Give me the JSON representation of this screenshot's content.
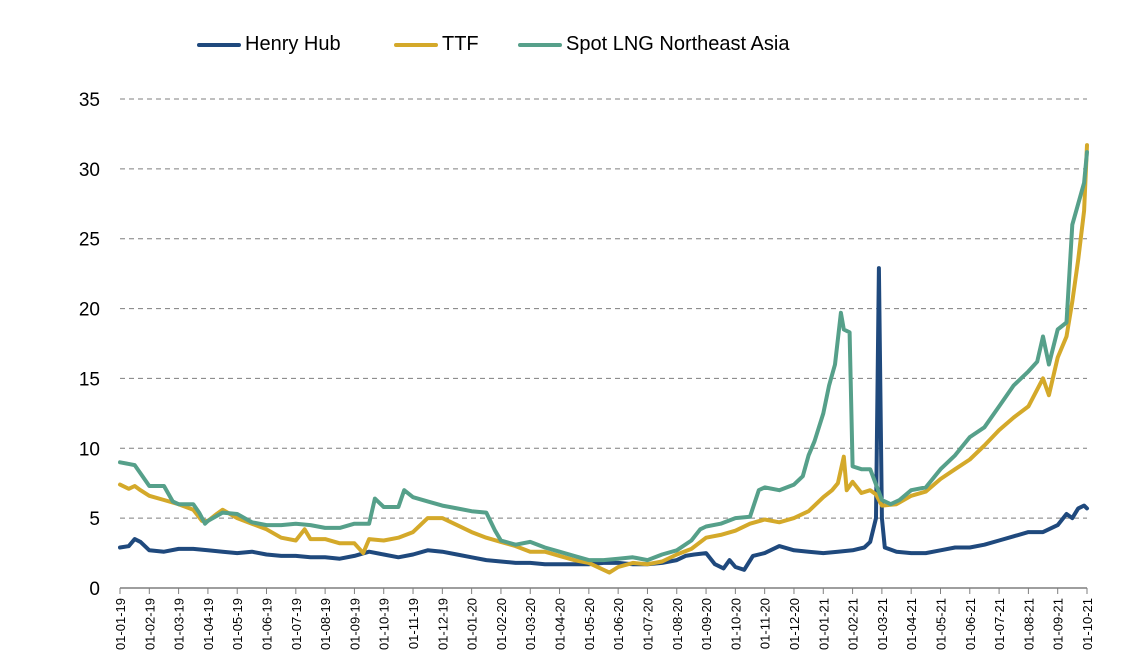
{
  "chart_data": {
    "type": "line",
    "title": "",
    "xlabel": "",
    "ylabel": "",
    "ylim": [
      0,
      35
    ],
    "yticks": [
      0,
      5,
      10,
      15,
      20,
      25,
      30,
      35
    ],
    "grid": "horizontal-dashed",
    "legend": "top",
    "x_tick_labels": [
      "01-01-19",
      "01-02-19",
      "01-03-19",
      "01-04-19",
      "01-05-19",
      "01-06-19",
      "01-07-19",
      "01-08-19",
      "01-09-19",
      "01-10-19",
      "01-11-19",
      "01-12-19",
      "01-01-20",
      "01-02-20",
      "01-03-20",
      "01-04-20",
      "01-05-20",
      "01-06-20",
      "01-07-20",
      "01-08-20",
      "01-09-20",
      "01-10-20",
      "01-11-20",
      "01-12-20",
      "01-01-21",
      "01-02-21",
      "01-03-21",
      "01-04-21",
      "01-05-21",
      "01-06-21",
      "01-07-21",
      "01-08-21",
      "01-09-21",
      "01-10-21"
    ],
    "series": [
      {
        "name": "Henry Hub",
        "color": "#1f497d",
        "points": [
          [
            0,
            2.9
          ],
          [
            0.3,
            3.0
          ],
          [
            0.5,
            3.5
          ],
          [
            0.7,
            3.3
          ],
          [
            1,
            2.7
          ],
          [
            1.5,
            2.6
          ],
          [
            2,
            2.8
          ],
          [
            2.5,
            2.8
          ],
          [
            3,
            2.7
          ],
          [
            3.5,
            2.6
          ],
          [
            4,
            2.5
          ],
          [
            4.5,
            2.6
          ],
          [
            5,
            2.4
          ],
          [
            5.5,
            2.3
          ],
          [
            6,
            2.3
          ],
          [
            6.5,
            2.2
          ],
          [
            7,
            2.2
          ],
          [
            7.5,
            2.1
          ],
          [
            8,
            2.3
          ],
          [
            8.5,
            2.6
          ],
          [
            9,
            2.4
          ],
          [
            9.5,
            2.2
          ],
          [
            10,
            2.4
          ],
          [
            10.5,
            2.7
          ],
          [
            11,
            2.6
          ],
          [
            11.5,
            2.4
          ],
          [
            12,
            2.2
          ],
          [
            12.5,
            2.0
          ],
          [
            13,
            1.9
          ],
          [
            13.5,
            1.8
          ],
          [
            14,
            1.8
          ],
          [
            14.5,
            1.7
          ],
          [
            15,
            1.7
          ],
          [
            15.5,
            1.7
          ],
          [
            16,
            1.7
          ],
          [
            16.5,
            1.8
          ],
          [
            17,
            1.8
          ],
          [
            17.5,
            1.7
          ],
          [
            18,
            1.7
          ],
          [
            18.5,
            1.8
          ],
          [
            19,
            2.0
          ],
          [
            19.3,
            2.3
          ],
          [
            19.6,
            2.4
          ],
          [
            20,
            2.5
          ],
          [
            20.3,
            1.7
          ],
          [
            20.6,
            1.4
          ],
          [
            20.8,
            2.0
          ],
          [
            21,
            1.5
          ],
          [
            21.3,
            1.3
          ],
          [
            21.6,
            2.3
          ],
          [
            22,
            2.5
          ],
          [
            22.5,
            3.0
          ],
          [
            23,
            2.7
          ],
          [
            23.5,
            2.6
          ],
          [
            24,
            2.5
          ],
          [
            24.5,
            2.6
          ],
          [
            25,
            2.7
          ],
          [
            25.4,
            2.9
          ],
          [
            25.6,
            3.3
          ],
          [
            25.8,
            5.0
          ],
          [
            25.9,
            22.9
          ],
          [
            26.0,
            5.0
          ],
          [
            26.1,
            2.9
          ],
          [
            26.5,
            2.6
          ],
          [
            27,
            2.5
          ],
          [
            27.5,
            2.5
          ],
          [
            28,
            2.7
          ],
          [
            28.5,
            2.9
          ],
          [
            29,
            2.9
          ],
          [
            29.5,
            3.1
          ],
          [
            30,
            3.4
          ],
          [
            30.5,
            3.7
          ],
          [
            31,
            4.0
          ],
          [
            31.5,
            4.0
          ],
          [
            32,
            4.5
          ],
          [
            32.3,
            5.3
          ],
          [
            32.5,
            5.0
          ],
          [
            32.7,
            5.7
          ],
          [
            32.9,
            5.9
          ],
          [
            33,
            5.7
          ]
        ]
      },
      {
        "name": "TTF",
        "color": "#d4a92a",
        "points": [
          [
            0,
            7.4
          ],
          [
            0.3,
            7.1
          ],
          [
            0.5,
            7.3
          ],
          [
            0.7,
            7.0
          ],
          [
            1,
            6.6
          ],
          [
            1.5,
            6.3
          ],
          [
            2,
            6.0
          ],
          [
            2.5,
            5.6
          ],
          [
            2.8,
            4.8
          ],
          [
            3,
            4.8
          ],
          [
            3.3,
            5.3
          ],
          [
            3.5,
            5.6
          ],
          [
            4,
            5.0
          ],
          [
            4.5,
            4.6
          ],
          [
            5,
            4.2
          ],
          [
            5.5,
            3.6
          ],
          [
            6,
            3.4
          ],
          [
            6.3,
            4.2
          ],
          [
            6.5,
            3.5
          ],
          [
            7,
            3.5
          ],
          [
            7.5,
            3.2
          ],
          [
            8,
            3.2
          ],
          [
            8.3,
            2.5
          ],
          [
            8.5,
            3.5
          ],
          [
            9,
            3.4
          ],
          [
            9.5,
            3.6
          ],
          [
            10,
            4.0
          ],
          [
            10.5,
            5.0
          ],
          [
            11,
            5.0
          ],
          [
            11.5,
            4.5
          ],
          [
            12,
            4.0
          ],
          [
            12.5,
            3.6
          ],
          [
            13,
            3.3
          ],
          [
            13.5,
            3.0
          ],
          [
            14,
            2.6
          ],
          [
            14.5,
            2.6
          ],
          [
            15,
            2.3
          ],
          [
            15.5,
            2.0
          ],
          [
            16,
            1.8
          ],
          [
            16.5,
            1.3
          ],
          [
            16.7,
            1.1
          ],
          [
            17,
            1.5
          ],
          [
            17.5,
            1.8
          ],
          [
            18,
            1.7
          ],
          [
            18.5,
            1.9
          ],
          [
            19,
            2.4
          ],
          [
            19.5,
            2.8
          ],
          [
            20,
            3.6
          ],
          [
            20.5,
            3.8
          ],
          [
            21,
            4.1
          ],
          [
            21.5,
            4.6
          ],
          [
            22,
            4.9
          ],
          [
            22.5,
            4.7
          ],
          [
            23,
            5.0
          ],
          [
            23.5,
            5.5
          ],
          [
            24,
            6.5
          ],
          [
            24.3,
            7.0
          ],
          [
            24.5,
            7.5
          ],
          [
            24.7,
            9.4
          ],
          [
            24.8,
            7.0
          ],
          [
            25,
            7.6
          ],
          [
            25.3,
            6.8
          ],
          [
            25.6,
            7.0
          ],
          [
            25.8,
            6.7
          ],
          [
            26,
            5.9
          ],
          [
            26.5,
            6.0
          ],
          [
            27,
            6.6
          ],
          [
            27.5,
            6.9
          ],
          [
            28,
            7.8
          ],
          [
            28.5,
            8.5
          ],
          [
            29,
            9.2
          ],
          [
            29.5,
            10.2
          ],
          [
            30,
            11.3
          ],
          [
            30.5,
            12.2
          ],
          [
            31,
            13.0
          ],
          [
            31.5,
            15.0
          ],
          [
            31.7,
            13.8
          ],
          [
            32,
            16.5
          ],
          [
            32.3,
            18.0
          ],
          [
            32.5,
            20.5
          ],
          [
            32.7,
            23.5
          ],
          [
            32.9,
            27.0
          ],
          [
            33,
            31.7
          ]
        ]
      },
      {
        "name": "Spot LNG Northeast Asia",
        "color": "#56a08a",
        "points": [
          [
            0,
            9.0
          ],
          [
            0.5,
            8.8
          ],
          [
            0.7,
            8.2
          ],
          [
            1,
            7.3
          ],
          [
            1.5,
            7.3
          ],
          [
            1.8,
            6.2
          ],
          [
            2,
            6.0
          ],
          [
            2.5,
            6.0
          ],
          [
            2.7,
            5.4
          ],
          [
            2.9,
            4.6
          ],
          [
            3,
            4.8
          ],
          [
            3.5,
            5.4
          ],
          [
            4,
            5.3
          ],
          [
            4.5,
            4.7
          ],
          [
            5,
            4.5
          ],
          [
            5.5,
            4.5
          ],
          [
            6,
            4.6
          ],
          [
            6.5,
            4.5
          ],
          [
            7,
            4.3
          ],
          [
            7.5,
            4.3
          ],
          [
            8,
            4.6
          ],
          [
            8.5,
            4.6
          ],
          [
            8.7,
            6.4
          ],
          [
            9,
            5.8
          ],
          [
            9.5,
            5.8
          ],
          [
            9.7,
            7.0
          ],
          [
            10,
            6.5
          ],
          [
            10.5,
            6.2
          ],
          [
            11,
            5.9
          ],
          [
            11.5,
            5.7
          ],
          [
            12,
            5.5
          ],
          [
            12.5,
            5.4
          ],
          [
            12.8,
            4.1
          ],
          [
            13,
            3.4
          ],
          [
            13.5,
            3.1
          ],
          [
            14,
            3.3
          ],
          [
            14.5,
            2.9
          ],
          [
            15,
            2.6
          ],
          [
            15.5,
            2.3
          ],
          [
            16,
            2.0
          ],
          [
            16.5,
            2.0
          ],
          [
            17,
            2.1
          ],
          [
            17.5,
            2.2
          ],
          [
            18,
            2.0
          ],
          [
            18.5,
            2.4
          ],
          [
            19,
            2.7
          ],
          [
            19.5,
            3.4
          ],
          [
            19.8,
            4.2
          ],
          [
            20,
            4.4
          ],
          [
            20.5,
            4.6
          ],
          [
            21,
            5.0
          ],
          [
            21.5,
            5.1
          ],
          [
            21.8,
            7.0
          ],
          [
            22,
            7.2
          ],
          [
            22.5,
            7.0
          ],
          [
            23,
            7.4
          ],
          [
            23.3,
            8.0
          ],
          [
            23.5,
            9.5
          ],
          [
            23.7,
            10.5
          ],
          [
            24,
            12.5
          ],
          [
            24.2,
            14.5
          ],
          [
            24.4,
            16.0
          ],
          [
            24.6,
            19.7
          ],
          [
            24.7,
            18.5
          ],
          [
            24.9,
            18.3
          ],
          [
            25,
            8.7
          ],
          [
            25.3,
            8.5
          ],
          [
            25.6,
            8.5
          ],
          [
            26,
            6.3
          ],
          [
            26.3,
            6.0
          ],
          [
            26.6,
            6.3
          ],
          [
            27,
            7.0
          ],
          [
            27.5,
            7.2
          ],
          [
            28,
            8.5
          ],
          [
            28.5,
            9.5
          ],
          [
            29,
            10.8
          ],
          [
            29.5,
            11.5
          ],
          [
            30,
            13.0
          ],
          [
            30.5,
            14.5
          ],
          [
            31,
            15.5
          ],
          [
            31.3,
            16.2
          ],
          [
            31.5,
            18.0
          ],
          [
            31.7,
            16.0
          ],
          [
            32,
            18.5
          ],
          [
            32.3,
            19.0
          ],
          [
            32.5,
            26.0
          ],
          [
            32.7,
            27.5
          ],
          [
            32.9,
            29.0
          ],
          [
            33,
            31.2
          ]
        ]
      }
    ]
  }
}
